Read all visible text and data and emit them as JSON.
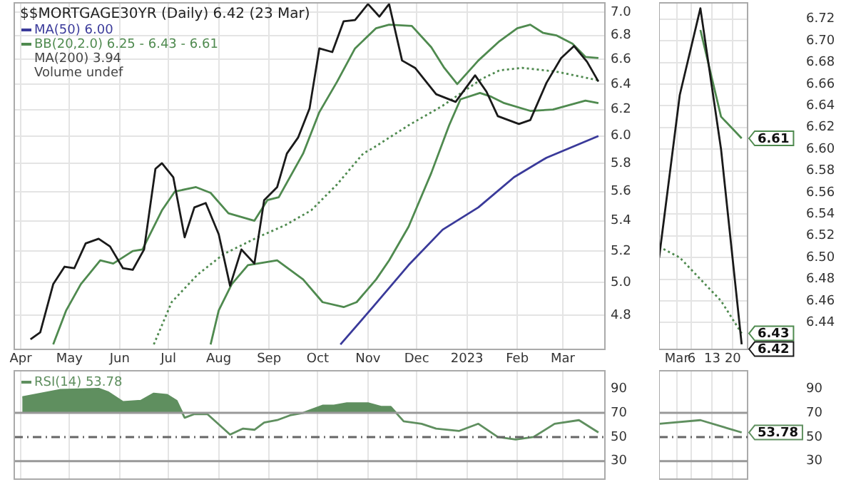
{
  "chart_data": [
    {
      "type": "line",
      "title": "$$MORTGAGE30YR (Daily) 6.42 (23 Mar)",
      "log": true,
      "grid": true,
      "legend": "top left",
      "annotations": [
        "MA(200) 3.94",
        "Volume undef"
      ],
      "xlim": [
        "2022-03-28",
        "2023-03-27"
      ],
      "xticks": [
        {
          "value": "2022-04-01",
          "label": "Apr"
        },
        {
          "value": "2022-05-01",
          "label": "May"
        },
        {
          "value": "2022-06-01",
          "label": "Jun"
        },
        {
          "value": "2022-07-01",
          "label": "Jul"
        },
        {
          "value": "2022-08-01",
          "label": "Aug"
        },
        {
          "value": "2022-09-01",
          "label": "Sep"
        },
        {
          "value": "2022-10-01",
          "label": "Oct"
        },
        {
          "value": "2022-11-01",
          "label": "Nov"
        },
        {
          "value": "2022-12-01",
          "label": "Dec"
        },
        {
          "value": "2023-01-01",
          "label": "2023"
        },
        {
          "value": "2023-02-01",
          "label": "Feb"
        },
        {
          "value": "2023-03-01",
          "label": "Mar"
        }
      ],
      "ylim": [
        4.62,
        7.08
      ],
      "yticks": [
        4.8,
        {
          "value": 5,
          "label": "5.0"
        },
        5.2,
        5.4,
        5.6,
        5.8,
        {
          "value": 6,
          "label": "6.0"
        },
        6.2,
        6.4,
        6.6,
        6.8,
        {
          "value": 7,
          "label": "7.0"
        }
      ],
      "series": [
        {
          "color": "#1a1a1a",
          "x": [
            "2022-04-07",
            "2022-04-13",
            "2022-04-21",
            "2022-04-28",
            "2022-05-04",
            "2022-05-11",
            "2022-05-19",
            "2022-05-26",
            "2022-06-03",
            "2022-06-09",
            "2022-06-16",
            "2022-06-23",
            "2022-06-27",
            "2022-07-04",
            "2022-07-11",
            "2022-07-17",
            "2022-07-24",
            "2022-08-01",
            "2022-08-08",
            "2022-08-15",
            "2022-08-23",
            "2022-08-29",
            "2022-09-06",
            "2022-09-12",
            "2022-09-19",
            "2022-09-26",
            "2022-10-02",
            "2022-10-10",
            "2022-10-17",
            "2022-10-24",
            "2022-11-01",
            "2022-11-08",
            "2022-11-14",
            "2022-11-22",
            "2022-11-30",
            "2022-12-13",
            "2022-12-25",
            "2023-01-06",
            "2023-01-13",
            "2023-01-20",
            "2023-02-02",
            "2023-02-09",
            "2023-02-19",
            "2023-02-28",
            "2023-03-08",
            "2023-03-16",
            "2023-03-23"
          ],
          "values": [
            4.66,
            4.7,
            4.99,
            5.1,
            5.09,
            5.25,
            5.28,
            5.23,
            5.09,
            5.08,
            5.21,
            5.76,
            5.8,
            5.7,
            5.29,
            5.49,
            5.52,
            5.31,
            4.98,
            5.21,
            5.12,
            5.54,
            5.63,
            5.87,
            5.99,
            6.21,
            6.69,
            6.66,
            6.92,
            6.93,
            7.07,
            6.96,
            7.07,
            6.59,
            6.53,
            6.32,
            6.26,
            6.47,
            6.34,
            6.15,
            6.09,
            6.12,
            6.41,
            6.61,
            6.71,
            6.58,
            6.42
          ]
        },
        {
          "name": "MA(50) 6.00",
          "color": "#3a3a9a",
          "x": [
            "2022-10-15",
            "2022-11-04",
            "2022-11-26",
            "2022-12-17",
            "2023-01-08",
            "2023-01-30",
            "2023-02-19",
            "2023-03-23"
          ],
          "values": [
            4.63,
            4.85,
            5.11,
            5.34,
            5.49,
            5.7,
            5.84,
            6.0
          ]
        },
        {
          "name": "BB(20,2.0) 6.25 - 6.43 - 6.61",
          "color": "#4f8a4f",
          "x": [
            "2022-04-21",
            "2022-04-29",
            "2022-05-08",
            "2022-05-20",
            "2022-05-28",
            "2022-06-09",
            "2022-06-15",
            "2022-06-27",
            "2022-07-05",
            "2022-07-18",
            "2022-07-27",
            "2022-08-07",
            "2022-08-23",
            "2022-08-31",
            "2022-09-07",
            "2022-09-22",
            "2022-10-02",
            "2022-10-13",
            "2022-10-24",
            "2022-11-06",
            "2022-11-14",
            "2022-11-28",
            "2022-12-10",
            "2022-12-18",
            "2022-12-26",
            "2023-01-08",
            "2023-01-21",
            "2023-02-01",
            "2023-02-09",
            "2023-02-17",
            "2023-02-25",
            "2023-03-07",
            "2023-03-15",
            "2023-03-23"
          ],
          "values": [
            4.63,
            4.83,
            4.99,
            5.14,
            5.12,
            5.2,
            5.21,
            5.47,
            5.6,
            5.63,
            5.59,
            5.45,
            5.4,
            5.54,
            5.56,
            5.87,
            6.18,
            6.42,
            6.69,
            6.86,
            6.89,
            6.88,
            6.7,
            6.53,
            6.4,
            6.59,
            6.75,
            6.86,
            6.89,
            6.82,
            6.8,
            6.73,
            6.62,
            6.61
          ]
        },
        {
          "color": "#4f8a4f",
          "line_style": "dotted",
          "x": [
            "2022-06-22",
            "2022-07-03",
            "2022-07-19",
            "2022-08-04",
            "2022-08-25",
            "2022-09-11",
            "2022-09-27",
            "2022-10-13",
            "2022-10-29",
            "2022-11-04",
            "2022-11-26",
            "2022-12-17",
            "2023-01-10",
            "2023-01-21",
            "2023-02-04",
            "2023-02-25",
            "2023-03-23"
          ],
          "values": [
            4.63,
            4.88,
            5.05,
            5.18,
            5.29,
            5.37,
            5.47,
            5.65,
            5.87,
            5.91,
            6.08,
            6.23,
            6.44,
            6.51,
            6.53,
            6.5,
            6.43
          ]
        },
        {
          "color": "#4f8a4f",
          "x": [
            "2022-07-27",
            "2022-08-01",
            "2022-08-09",
            "2022-08-19",
            "2022-09-06",
            "2022-09-22",
            "2022-10-04",
            "2022-10-17",
            "2022-10-25",
            "2022-11-06",
            "2022-11-14",
            "2022-11-26",
            "2022-12-10",
            "2022-12-21",
            "2022-12-28",
            "2023-01-09",
            "2023-01-16",
            "2023-01-24",
            "2023-02-09",
            "2023-02-23",
            "2023-03-15",
            "2023-03-23"
          ],
          "values": [
            4.63,
            4.83,
            4.99,
            5.11,
            5.14,
            5.02,
            4.88,
            4.85,
            4.88,
            5.02,
            5.14,
            5.36,
            5.73,
            6.08,
            6.28,
            6.33,
            6.3,
            6.25,
            6.19,
            6.2,
            6.27,
            6.25
          ]
        }
      ]
    },
    {
      "type": "line",
      "grid": true,
      "x": [
        "2023-02-23",
        "2023-03-02",
        "2023-03-09",
        "2023-03-16",
        "2023-03-23"
      ],
      "xlim": [
        "2023-02-23",
        "2023-03-25"
      ],
      "xticks": [
        {
          "value": "2023-03-01",
          "label": "Mar"
        },
        {
          "value": "2023-03-06",
          "label": "6"
        },
        {
          "value": "2023-03-13",
          "label": "13"
        },
        {
          "value": "2023-03-20",
          "label": "20"
        }
      ],
      "ylim": [
        6.415,
        6.735
      ],
      "yticks": [
        6.44,
        6.46,
        6.48,
        {
          "value": 6.5,
          "label": "6.50"
        },
        6.52,
        6.54,
        6.56,
        6.58,
        {
          "value": 6.6,
          "label": "6.60"
        },
        6.62,
        6.64,
        6.66,
        6.68,
        {
          "value": 6.7,
          "label": "6.70"
        },
        6.72
      ],
      "series": [
        {
          "color": "#1a1a1a",
          "values": [
            6.5,
            6.65,
            6.73,
            6.6,
            6.42
          ],
          "value_labels": [
            null,
            null,
            null,
            null,
            "6.42"
          ]
        },
        {
          "color": "#4f8a4f",
          "values": [
            null,
            null,
            6.71,
            6.63,
            6.61
          ],
          "value_labels": [
            null,
            null,
            null,
            null,
            "6.61"
          ]
        },
        {
          "color": "#4f8a4f",
          "line_style": "dotted",
          "values": [
            6.51,
            6.5,
            6.48,
            6.46,
            6.43
          ],
          "value_labels": [
            null,
            null,
            null,
            null,
            "6.43"
          ]
        }
      ]
    },
    {
      "type": "area",
      "grid": "x",
      "legend": "top left",
      "tick_labels": "y",
      "xlim": [
        "2022-03-28",
        "2023-03-27"
      ],
      "xticks": [
        "2022-04-01",
        "2022-05-01",
        "2022-06-01",
        "2022-07-01",
        "2022-08-01",
        "2022-09-01",
        "2022-10-01",
        "2022-11-01",
        "2022-12-01",
        "2023-01-01",
        "2023-02-01",
        "2023-03-01"
      ],
      "ylim": [
        15,
        105
      ],
      "yticks": [
        30,
        50,
        70,
        90
      ],
      "ref_lines": [
        {
          "axis": "y",
          "value": 70,
          "color": "#999999",
          "line_style": "solid"
        },
        {
          "axis": "y",
          "value": 50,
          "color": "#666666",
          "line_style": "dashed"
        },
        {
          "axis": "y",
          "value": 30,
          "color": "#999999",
          "line_style": "solid"
        }
      ],
      "series": [
        {
          "name": "RSI(14) 53.78",
          "color": "#5f8f5f",
          "x": [
            "2022-04-02",
            "2022-04-25",
            "2022-05-19",
            "2022-05-25",
            "2022-06-03",
            "2022-06-14",
            "2022-06-22",
            "2022-06-30",
            "2022-07-06",
            "2022-07-11",
            "2022-07-17",
            "2022-07-25",
            "2022-08-08",
            "2022-08-16",
            "2022-08-23",
            "2022-08-29",
            "2022-09-06",
            "2022-09-14",
            "2022-09-22",
            "2022-10-04",
            "2022-10-11",
            "2022-10-19",
            "2022-11-01",
            "2022-11-09",
            "2022-11-15",
            "2022-11-23",
            "2022-12-04",
            "2022-12-13",
            "2022-12-27",
            "2023-01-08",
            "2023-01-20",
            "2023-01-31",
            "2023-02-11",
            "2023-02-24",
            "2023-03-11",
            "2023-03-23"
          ],
          "values": [
            83,
            89,
            90,
            87,
            79,
            80,
            86,
            85,
            80,
            66,
            69,
            69,
            52,
            57,
            56,
            62,
            64,
            68,
            70,
            76,
            76,
            78,
            78,
            75,
            75,
            63,
            61,
            57,
            55,
            61,
            50,
            48,
            50,
            61,
            64,
            53.78
          ]
        }
      ]
    },
    {
      "type": "area",
      "grid": "x",
      "tick_labels": "y",
      "x": [
        "2023-02-23",
        "2023-03-09",
        "2023-03-23"
      ],
      "xlim": [
        "2023-02-23",
        "2023-03-25"
      ],
      "xticks": [
        "2023-03-01",
        "2023-03-06",
        "2023-03-13",
        "2023-03-20"
      ],
      "ylim": [
        15,
        105
      ],
      "yticks": [
        30,
        50,
        70,
        90
      ],
      "ref_lines": [
        {
          "axis": "y",
          "value": 70,
          "color": "#999999",
          "line_style": "solid"
        },
        {
          "axis": "y",
          "value": 50,
          "color": "#666666",
          "line_style": "dashed"
        },
        {
          "axis": "y",
          "value": 30,
          "color": "#999999",
          "line_style": "solid"
        }
      ],
      "series": [
        {
          "color": "#5f8f5f",
          "values": [
            61,
            64,
            53.78
          ],
          "value_labels": [
            null,
            null,
            "53.78"
          ]
        }
      ]
    }
  ]
}
